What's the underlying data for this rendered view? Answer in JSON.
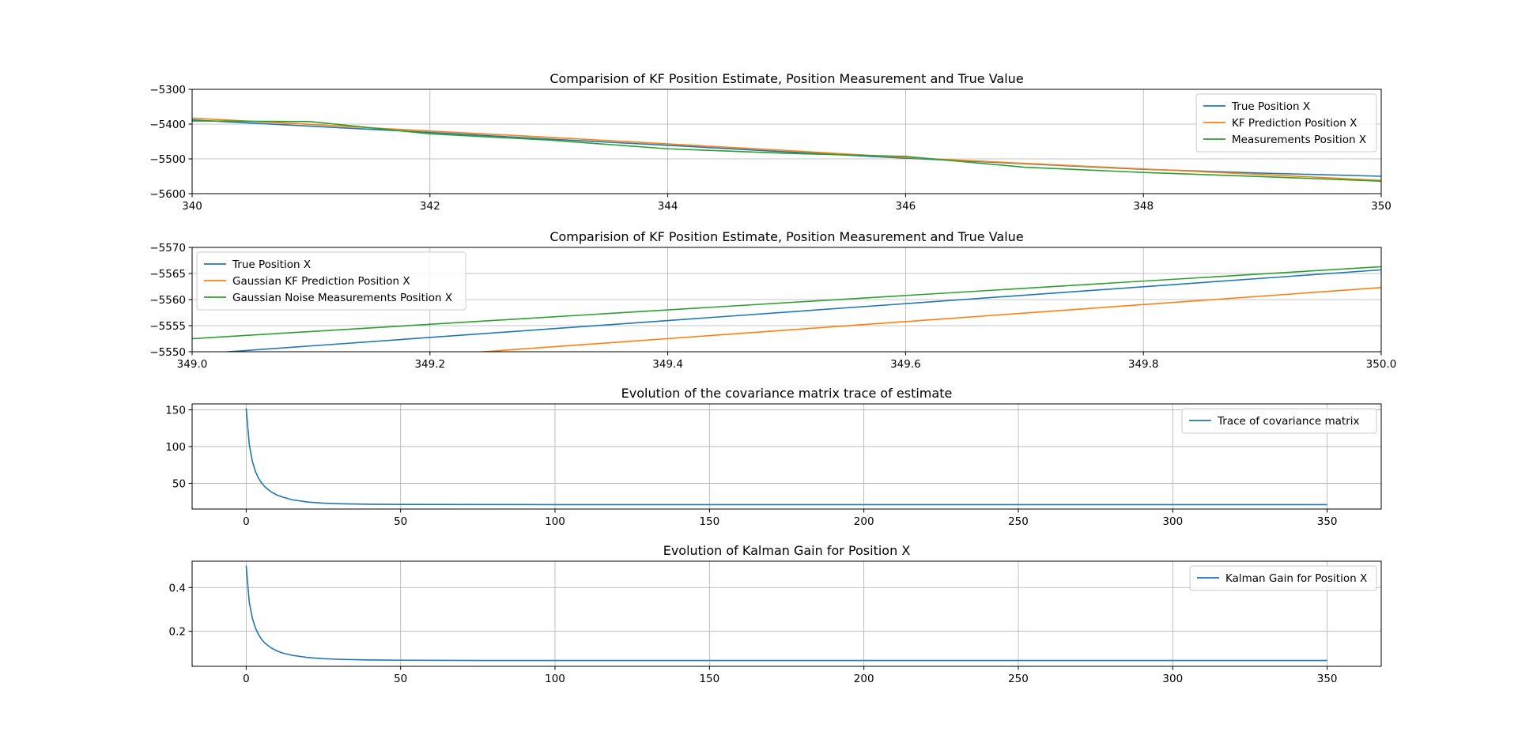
{
  "chart_data": [
    {
      "type": "line",
      "title": "Comparision of KF Position Estimate, Position Measurement and True Value",
      "xlabel": "",
      "ylabel": "",
      "xlim": [
        340,
        350
      ],
      "ylim": [
        -5600,
        -5300
      ],
      "xticks": [
        340,
        342,
        344,
        346,
        348,
        350
      ],
      "yticks": [
        -5600,
        -5500,
        -5400,
        -5300
      ],
      "xtick_labels": [
        "340",
        "342",
        "344",
        "346",
        "348",
        "350"
      ],
      "ytick_labels": [
        "−5600",
        "−5500",
        "−5400",
        "−5300"
      ],
      "grid": true,
      "legend_position": "upper right",
      "series": [
        {
          "name": "True Position X",
          "color": "#1f77b4",
          "x": [
            340,
            341,
            342,
            343,
            344,
            345,
            346,
            347,
            348,
            349,
            350
          ],
          "y": [
            -5388,
            -5406,
            -5424,
            -5443,
            -5461,
            -5480,
            -5498,
            -5514,
            -5530,
            -5541,
            -5550
          ]
        },
        {
          "name": "KF Prediction Position X",
          "color": "#ff7f0e",
          "x": [
            340,
            341,
            342,
            343,
            344,
            345,
            346,
            347,
            348,
            349,
            350
          ],
          "y": [
            -5383,
            -5401,
            -5420,
            -5438,
            -5457,
            -5476,
            -5496,
            -5513,
            -5529,
            -5545,
            -5562
          ]
        },
        {
          "name": "Measurements Position X",
          "color": "#2ca02c",
          "x": [
            340,
            341,
            342,
            343,
            344,
            345,
            346,
            347,
            348,
            349,
            350
          ],
          "y": [
            -5391,
            -5393,
            -5428,
            -5446,
            -5471,
            -5484,
            -5493,
            -5524,
            -5539,
            -5551,
            -5564
          ]
        }
      ]
    },
    {
      "type": "line",
      "title": "Comparision of KF Position Estimate, Position Measurement and True Value",
      "xlabel": "",
      "ylabel": "",
      "xlim": [
        349.0,
        350.0
      ],
      "ylim": [
        -5550,
        -5570
      ],
      "xticks": [
        349.0,
        349.2,
        349.4,
        349.6,
        349.8,
        350.0
      ],
      "yticks": [
        -5550,
        -5555,
        -5560,
        -5565,
        -5570
      ],
      "xtick_labels": [
        "349.0",
        "349.2",
        "349.4",
        "349.6",
        "349.8",
        "350.0"
      ],
      "ytick_labels": [
        "−5550",
        "−5555",
        "−5560",
        "−5565",
        "−5570"
      ],
      "grid": true,
      "legend_position": "upper left",
      "series": [
        {
          "name": "True Position X",
          "color": "#1f77b4",
          "x": [
            349.0,
            350.0
          ],
          "y": [
            -5549.5,
            -5565.7
          ]
        },
        {
          "name": "Gaussian KF Prediction Position X",
          "color": "#ff7f0e",
          "x": [
            349.0,
            350.0
          ],
          "y": [
            -5546.0,
            -5562.3
          ]
        },
        {
          "name": "Gaussian Noise Measurements Position X",
          "color": "#2ca02c",
          "x": [
            349.0,
            350.0
          ],
          "y": [
            -5552.5,
            -5566.3
          ]
        }
      ]
    },
    {
      "type": "line",
      "title": "Evolution of the covariance matrix trace of estimate",
      "xlabel": "",
      "ylabel": "",
      "xlim": [
        -17.5,
        367.5
      ],
      "ylim": [
        15,
        158
      ],
      "xticks": [
        0,
        50,
        100,
        150,
        200,
        250,
        300,
        350
      ],
      "yticks": [
        50,
        100,
        150
      ],
      "xtick_labels": [
        "0",
        "50",
        "100",
        "150",
        "200",
        "250",
        "300",
        "350"
      ],
      "ytick_labels": [
        "50",
        "100",
        "150"
      ],
      "grid": true,
      "legend_position": "upper right",
      "series": [
        {
          "name": "Trace of covariance matrix",
          "color": "#1f77b4",
          "x": [
            0,
            1,
            2,
            3,
            4,
            5,
            6,
            8,
            10,
            12,
            15,
            20,
            25,
            30,
            40,
            50,
            75,
            100,
            150,
            200,
            250,
            300,
            350
          ],
          "y": [
            152,
            103,
            80,
            66,
            57,
            50.5,
            45.5,
            38.5,
            34,
            31,
            27.5,
            24.5,
            23,
            22.2,
            21.5,
            21.3,
            21.1,
            21,
            21,
            21,
            21,
            21,
            21
          ]
        }
      ]
    },
    {
      "type": "line",
      "title": "Evolution of Kalman Gain for Position X",
      "xlabel": "",
      "ylabel": "",
      "xlim": [
        -17.5,
        367.5
      ],
      "ylim": [
        0.04,
        0.52
      ],
      "xticks": [
        0,
        50,
        100,
        150,
        200,
        250,
        300,
        350
      ],
      "yticks": [
        0.2,
        0.4
      ],
      "xtick_labels": [
        "0",
        "50",
        "100",
        "150",
        "200",
        "250",
        "300",
        "350"
      ],
      "ytick_labels": [
        "0.2",
        "0.4"
      ],
      "grid": true,
      "legend_position": "upper right",
      "series": [
        {
          "name": "Kalman Gain for Position X",
          "color": "#1f77b4",
          "x": [
            0,
            1,
            2,
            3,
            4,
            5,
            6,
            8,
            10,
            12,
            15,
            20,
            25,
            30,
            40,
            50,
            75,
            100,
            150,
            200,
            250,
            300,
            350
          ],
          "y": [
            0.5,
            0.333,
            0.26,
            0.215,
            0.185,
            0.163,
            0.147,
            0.125,
            0.11,
            0.1,
            0.09,
            0.08,
            0.075,
            0.072,
            0.069,
            0.068,
            0.067,
            0.067,
            0.067,
            0.067,
            0.067,
            0.067,
            0.067
          ]
        }
      ]
    }
  ]
}
